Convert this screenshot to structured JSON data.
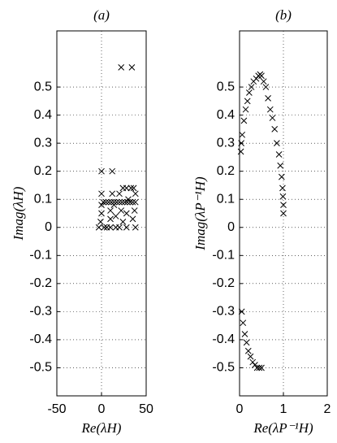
{
  "chart_data": [
    {
      "type": "scatter",
      "title": "(a)",
      "xlabel": "Re(λH)",
      "ylabel": "Imag(λH)",
      "color": "#000000",
      "grid": true,
      "xlim": [
        -50,
        50
      ],
      "xticks": [
        -50,
        0,
        50
      ],
      "ylim": [
        -0.6,
        0.7
      ],
      "yticks": [
        -0.5,
        -0.4,
        -0.3,
        -0.2,
        -0.1,
        0,
        0.1,
        0.2,
        0.3,
        0.4,
        0.5
      ],
      "x": [
        22,
        34,
        0,
        12,
        -3,
        -1,
        0,
        0,
        0,
        2,
        5,
        8,
        11,
        14,
        17,
        20,
        23,
        26,
        29,
        32,
        35,
        38,
        10,
        10,
        10,
        12,
        14,
        16,
        16,
        20,
        22,
        24,
        24,
        28,
        28,
        28,
        30,
        33,
        35,
        36,
        37,
        38,
        38,
        3,
        6,
        20
      ],
      "y": [
        0.57,
        0.57,
        0.2,
        0.2,
        0,
        0.02,
        0.05,
        0.08,
        0.12,
        0.09,
        0.09,
        0.09,
        0.09,
        0.09,
        0.09,
        0.09,
        0.09,
        0.09,
        0.09,
        0.09,
        0.09,
        0.09,
        0.06,
        0.03,
        0,
        0.12,
        0.08,
        0.04,
        0,
        0.12,
        0.06,
        0.02,
        0.14,
        0.14,
        0.05,
        0,
        0.1,
        0.14,
        0.03,
        0.14,
        0.06,
        0,
        0.12,
        0,
        0,
        0
      ]
    },
    {
      "type": "scatter",
      "title": "(b)",
      "xlabel": "Re(λP⁻¹H)",
      "ylabel": "Imag(λP⁻¹H)",
      "color": "#000000",
      "grid": true,
      "xlim": [
        0,
        2
      ],
      "xticks": [
        0,
        1,
        2
      ],
      "ylim": [
        -0.6,
        0.7
      ],
      "yticks": [
        -0.5,
        -0.4,
        -0.3,
        -0.2,
        -0.1,
        0,
        0.1,
        0.2,
        0.3,
        0.4,
        0.5
      ],
      "x": [
        0.03,
        0.04,
        0.06,
        0.1,
        0.14,
        0.18,
        0.22,
        0.27,
        0.32,
        0.38,
        0.43,
        0.47,
        0.5,
        0.55,
        0.6,
        0.65,
        0.7,
        0.75,
        0.8,
        0.85,
        0.9,
        0.93,
        0.96,
        0.98,
        0.99,
        1.0,
        1.0,
        0.05,
        0.08,
        0.12,
        0.16,
        0.2,
        0.25,
        0.3,
        0.35,
        0.4,
        0.45,
        0.5
      ],
      "y": [
        0.27,
        0.3,
        0.33,
        0.38,
        0.42,
        0.45,
        0.48,
        0.5,
        0.52,
        0.53,
        0.54,
        0.545,
        0.54,
        0.52,
        0.5,
        0.46,
        0.42,
        0.39,
        0.35,
        0.3,
        0.26,
        0.22,
        0.18,
        0.14,
        0.11,
        0.08,
        0.05,
        -0.3,
        -0.34,
        -0.38,
        -0.41,
        -0.44,
        -0.46,
        -0.48,
        -0.49,
        -0.5,
        -0.5,
        -0.5
      ]
    }
  ]
}
